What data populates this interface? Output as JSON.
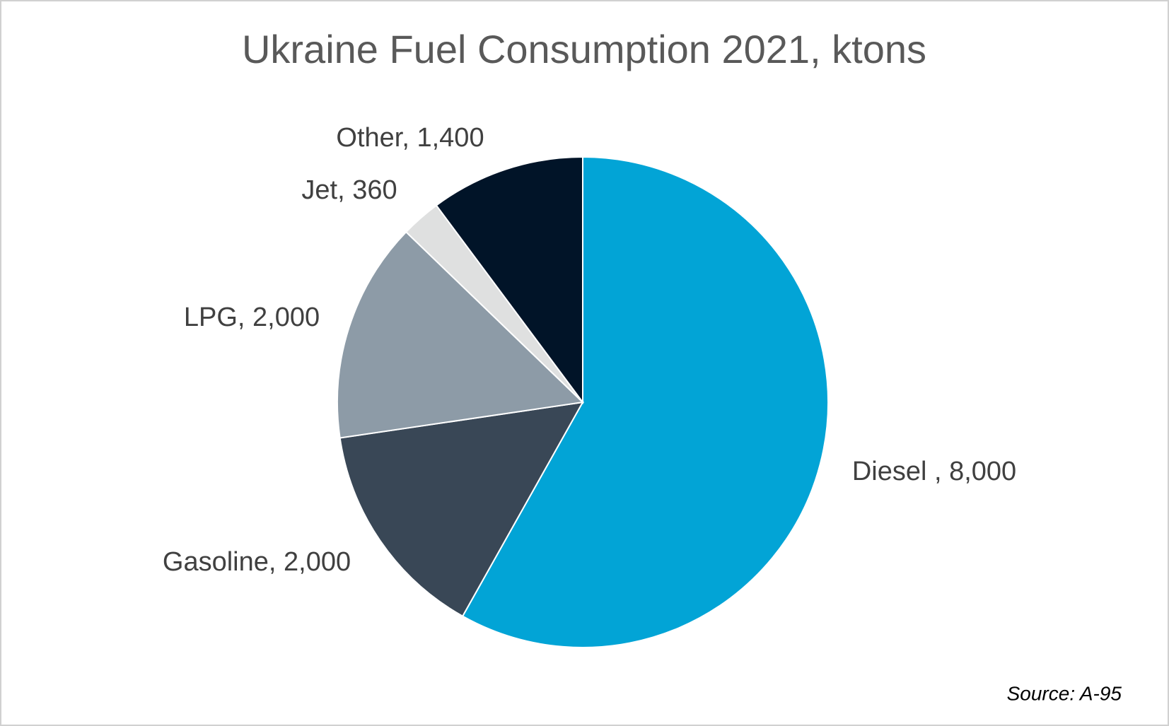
{
  "chart_data": {
    "type": "pie",
    "title": "Ukraine Fuel Consumption 2021, ktons",
    "categories": [
      "Diesel ",
      "Gasoline",
      "LPG",
      "Jet",
      "Other"
    ],
    "values": [
      8000,
      2000,
      2000,
      360,
      1400
    ],
    "value_labels": [
      "8,000",
      "2,000",
      "2,000",
      "360",
      "1,400"
    ],
    "label_separator": ", ",
    "colors": [
      "#02a4d6",
      "#394756",
      "#8d9ba7",
      "#dfe0e0",
      "#011428"
    ],
    "source": "Source: A-95"
  }
}
